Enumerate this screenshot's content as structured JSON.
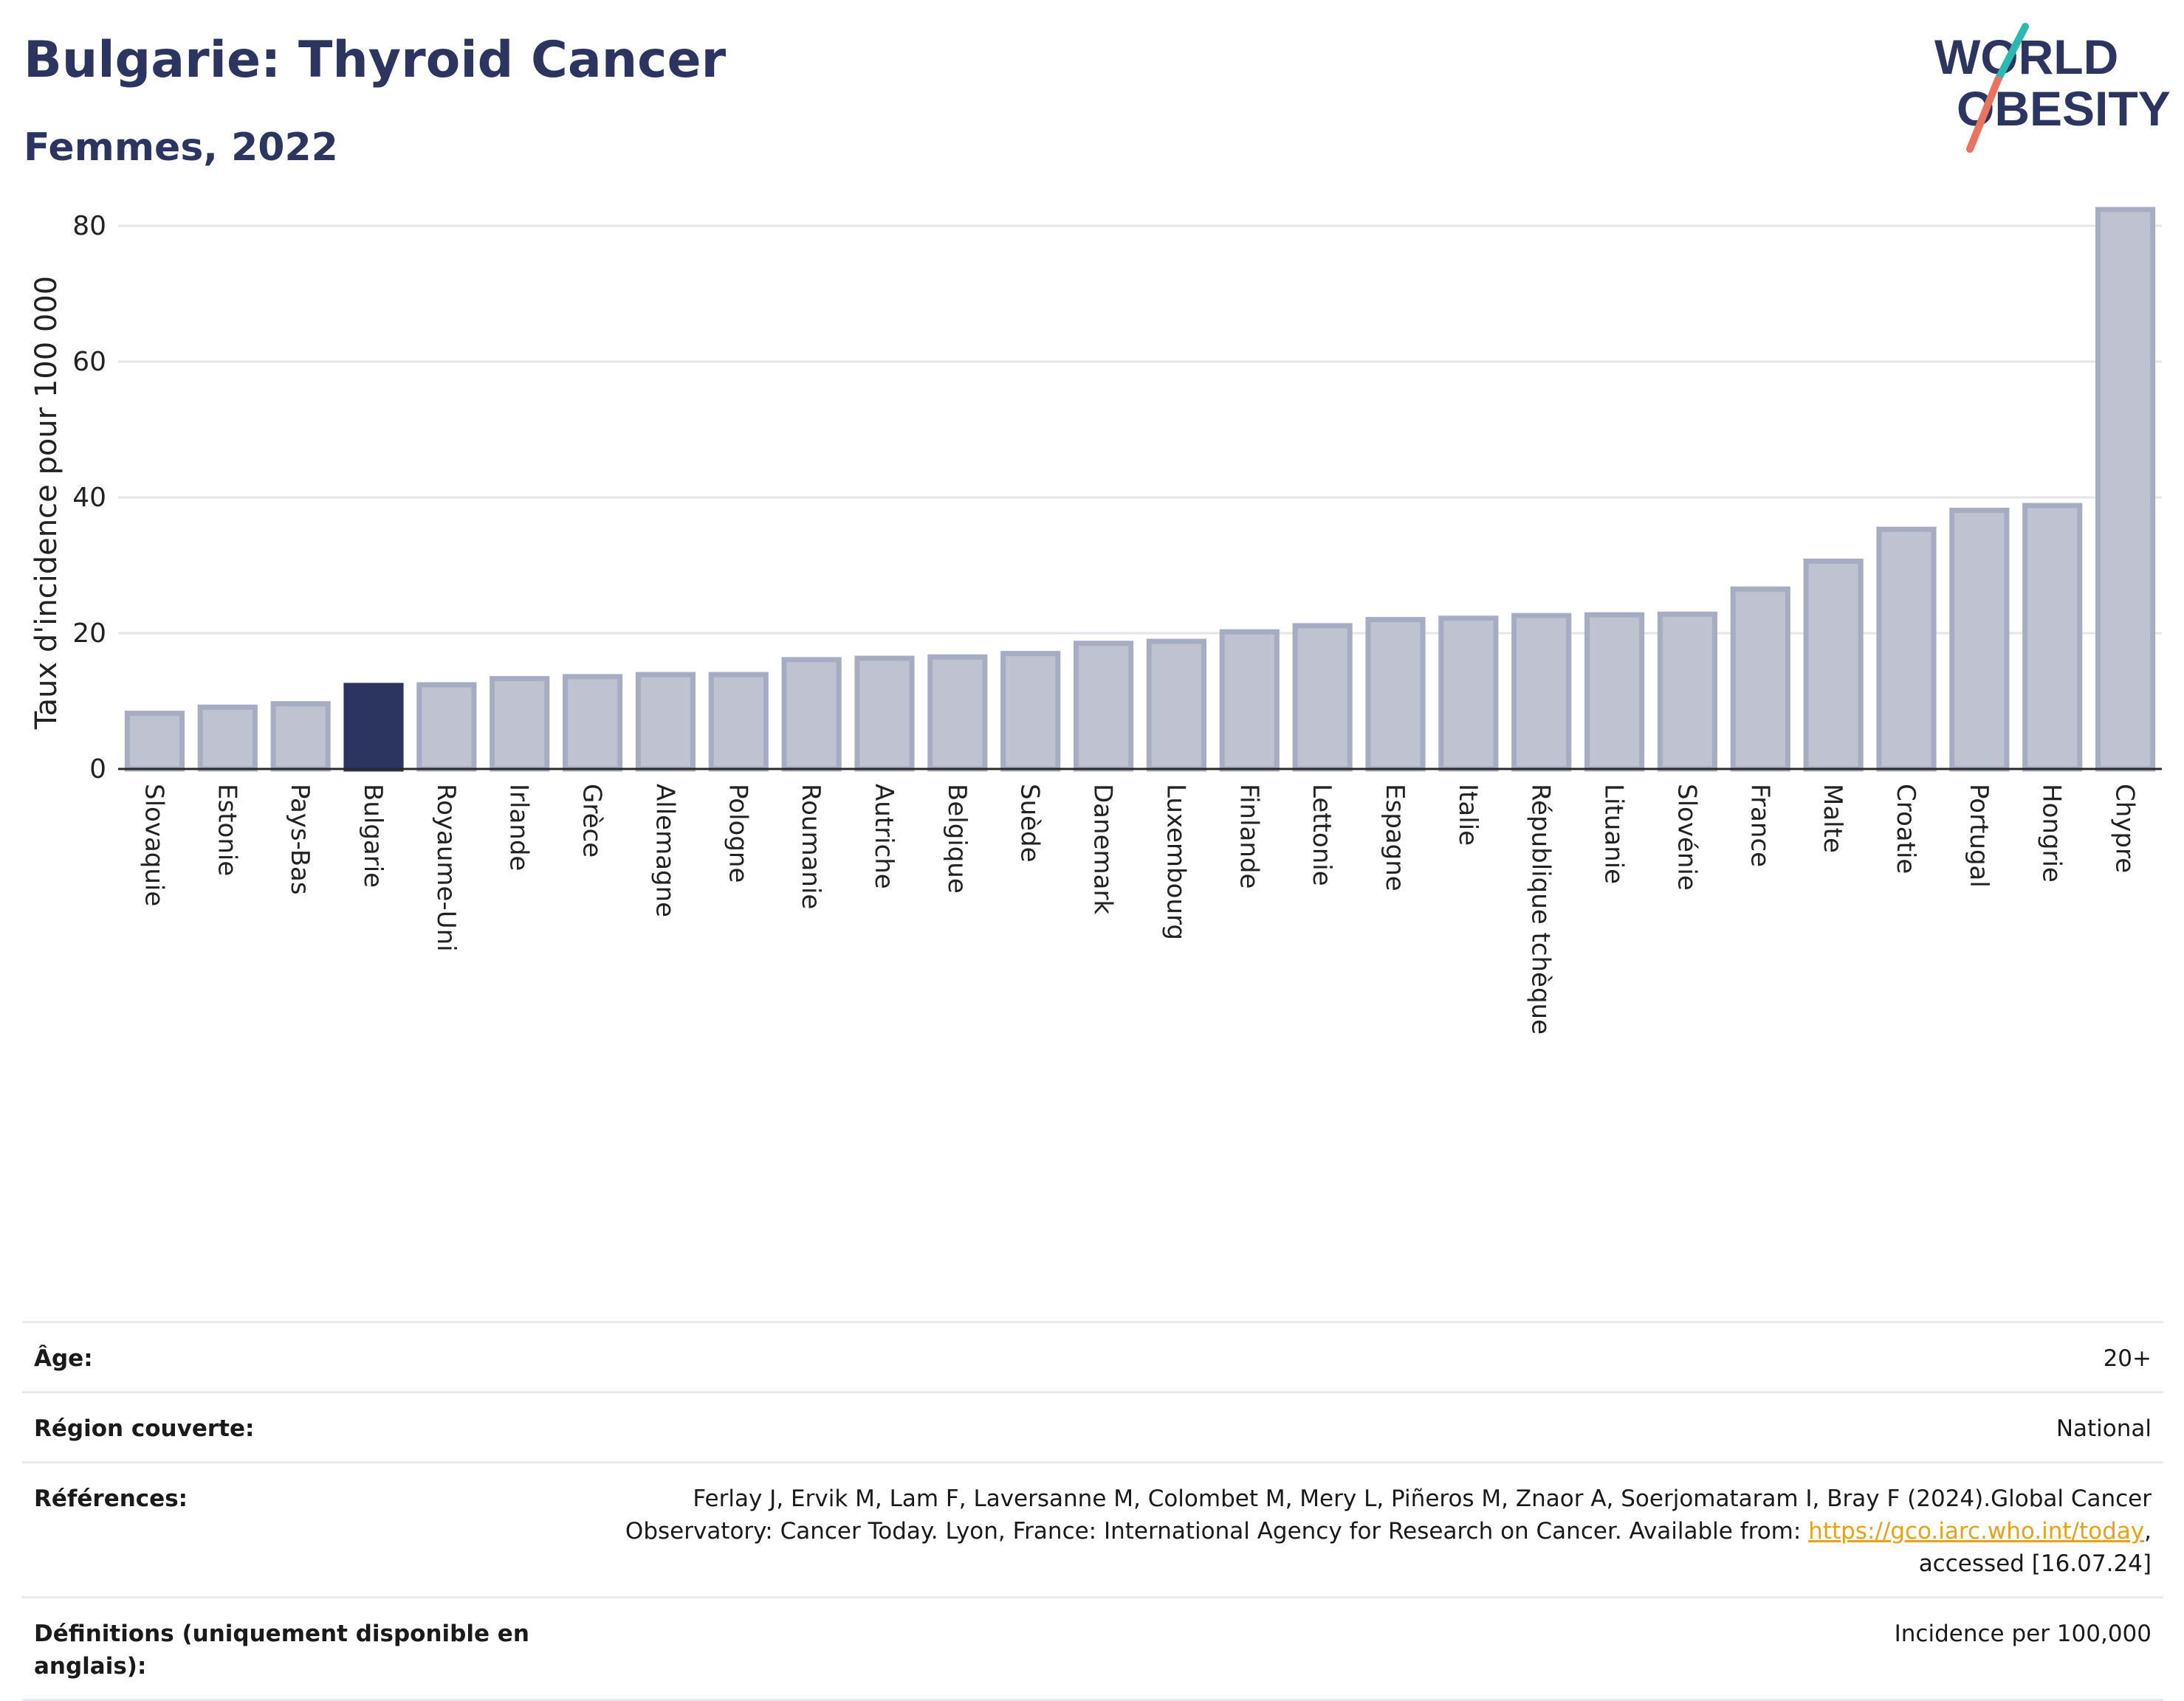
{
  "header": {
    "title": "Bulgarie: Thyroid Cancer",
    "subtitle": "Femmes, 2022",
    "logo_text_line1": "WORLD",
    "logo_text_line2": "OBESITY"
  },
  "colors": {
    "title": "#2b355f",
    "bar_default_fill": "#bfc3d1",
    "bar_default_stroke": "#a6acc2",
    "bar_highlight": "#2b355f",
    "gridline": "#e6e6ea",
    "link": "#e5a21a",
    "logo_teal": "#2bb8b0",
    "logo_coral": "#e8735f"
  },
  "chart_data": {
    "type": "bar",
    "ylabel": "Taux d'incidence pour 100 000",
    "xlabel": "",
    "ylim": [
      0,
      85
    ],
    "yticks": [
      0,
      20,
      40,
      60,
      80
    ],
    "grid": true,
    "highlight": "Bulgarie",
    "categories": [
      "Slovaquie",
      "Estonie",
      "Pays-Bas",
      "Bulgarie",
      "Royaume-Uni",
      "Irlande",
      "Grèce",
      "Allemagne",
      "Pologne",
      "Roumanie",
      "Autriche",
      "Belgique",
      "Suède",
      "Danemark",
      "Luxembourg",
      "Finlande",
      "Lettonie",
      "Espagne",
      "Italie",
      "République tchèque",
      "Lituanie",
      "Slovénie",
      "France",
      "Malte",
      "Croatie",
      "Portugal",
      "Hongrie",
      "Chypre"
    ],
    "values": [
      8.2,
      9.1,
      9.6,
      12.3,
      12.4,
      13.3,
      13.6,
      13.9,
      13.9,
      16.1,
      16.3,
      16.5,
      17.0,
      18.5,
      18.8,
      20.2,
      21.1,
      22.0,
      22.2,
      22.6,
      22.7,
      22.8,
      26.5,
      30.6,
      35.3,
      38.1,
      38.8,
      82.4
    ]
  },
  "info": {
    "age_label": "Âge:",
    "age_value": "20+",
    "region_label": "Région couverte:",
    "region_value": "National",
    "references_label": "Références:",
    "references_line1": "Ferlay J, Ervik M, Lam F, Laversanne M, Colombet M, Mery L, Piñeros M, Znaor A, Soerjomataram I, Bray F (2024).Global Cancer",
    "references_line2": "Observatory: Cancer Today. Lyon, France: International Agency for Research on Cancer. Available from: ",
    "references_link": "https://gco.iarc.who.int/today",
    "references_line2_end": ",",
    "references_line3": "accessed [16.07.24]",
    "definitions_label": "Définitions (uniquement disponible en anglais):",
    "definitions_value": "Incidence per 100,000"
  }
}
